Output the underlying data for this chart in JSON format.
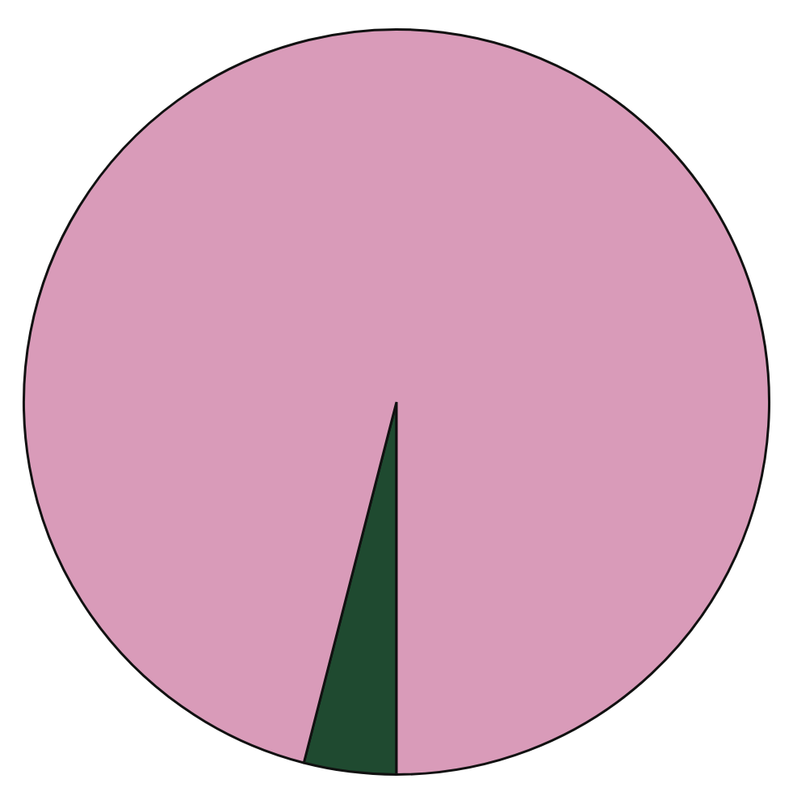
{
  "chart_data": {
    "type": "pie",
    "categories": [
      null,
      null
    ],
    "values": [
      4,
      96
    ],
    "colors": [
      "#1f4a30",
      "#d99bb9"
    ]
  }
}
